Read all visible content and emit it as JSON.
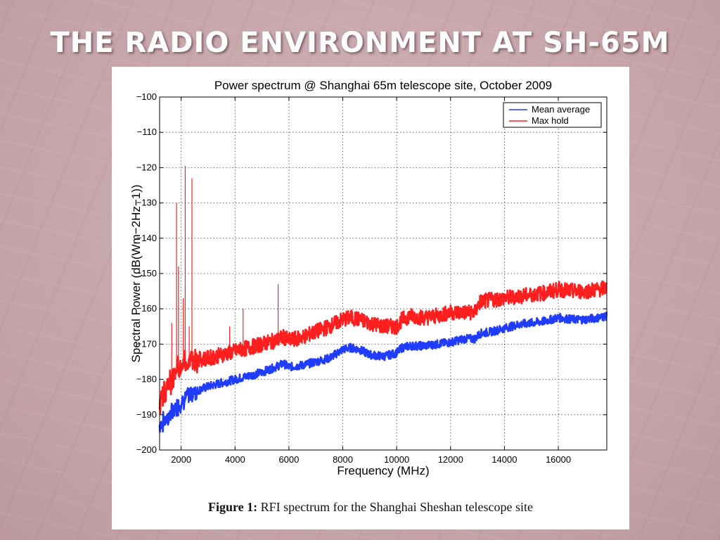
{
  "slide": {
    "title": "THE RADIO ENVIRONMENT AT SH-65M",
    "background_color": "#c8a9ad"
  },
  "figure": {
    "caption_label": "Figure 1:",
    "caption_text": "RFI spectrum for the Shanghai Sheshan telescope site"
  },
  "chart_data": {
    "type": "line",
    "title": "Power spectrum @ Shanghai 65m telescope site, October 2009",
    "xlabel": "Frequency (MHz)",
    "ylabel": "Spectral Power (dB(Wm−2Hz−1))",
    "xlim": [
      1200,
      17800
    ],
    "ylim": [
      -200,
      -100
    ],
    "xticks": [
      2000,
      4000,
      6000,
      8000,
      10000,
      12000,
      14000,
      16000
    ],
    "yticks": [
      -100,
      -110,
      -120,
      -130,
      -140,
      -150,
      -160,
      -170,
      -180,
      -190,
      -200
    ],
    "grid": true,
    "legend_position": "top-right",
    "series": [
      {
        "name": "Mean average",
        "color": "#1f3cff",
        "x": [
          1200,
          1500,
          1800,
          2000,
          2200,
          2500,
          3000,
          3500,
          4000,
          4500,
          5000,
          5500,
          5800,
          6000,
          6500,
          7000,
          7500,
          8000,
          8300,
          8600,
          9000,
          9500,
          10000,
          10200,
          10500,
          11000,
          11500,
          12000,
          12500,
          12900,
          13100,
          13500,
          14000,
          14500,
          15000,
          15500,
          16000,
          16500,
          17000,
          17500,
          17800
        ],
        "y": [
          -193,
          -191,
          -188,
          -186.5,
          -185,
          -183.5,
          -182,
          -181,
          -180,
          -179,
          -178,
          -176.5,
          -175.5,
          -176.5,
          -176,
          -175,
          -174,
          -171.5,
          -171,
          -171.5,
          -173,
          -173.5,
          -172.5,
          -171,
          -170.5,
          -170.5,
          -170,
          -169.5,
          -168.5,
          -168.5,
          -167,
          -166.5,
          -165.5,
          -164.5,
          -164,
          -163.5,
          -162.5,
          -163,
          -163,
          -162.5,
          -162
        ]
      },
      {
        "name": "Max hold",
        "color": "#ff1f1f",
        "x": [
          1200,
          1500,
          1800,
          2000,
          2200,
          2500,
          3000,
          3500,
          4000,
          4500,
          5000,
          5500,
          5800,
          6000,
          6500,
          7000,
          7500,
          8000,
          8300,
          8600,
          9000,
          9500,
          10000,
          10200,
          10500,
          11000,
          11500,
          12000,
          12500,
          12900,
          13100,
          13500,
          14000,
          14500,
          15000,
          15500,
          16000,
          16500,
          17000,
          17500,
          17800
        ],
        "y": [
          -187,
          -182,
          -178,
          -176,
          -175,
          -174.5,
          -174,
          -173,
          -172,
          -171,
          -170,
          -169,
          -168,
          -169,
          -168,
          -166.5,
          -165,
          -163,
          -162.5,
          -163,
          -164,
          -165,
          -165,
          -163,
          -162,
          -162.5,
          -162,
          -161,
          -161,
          -161,
          -158,
          -157.5,
          -157,
          -156.5,
          -156,
          -155.5,
          -154.5,
          -155,
          -155,
          -154.5,
          -154
        ]
      }
    ],
    "annotations": [
      {
        "x": 1650,
        "y": -164,
        "series": "Max hold"
      },
      {
        "x": 1830,
        "y": -130,
        "series": "Max hold"
      },
      {
        "x": 1900,
        "y": -148,
        "series": "Max hold"
      },
      {
        "x": 2080,
        "y": -157,
        "series": "Max hold"
      },
      {
        "x": 2150,
        "y": -119.5,
        "series": "Max hold"
      },
      {
        "x": 2300,
        "y": -165,
        "series": "Max hold"
      },
      {
        "x": 2400,
        "y": -123,
        "series": "Max hold"
      },
      {
        "x": 3800,
        "y": -165,
        "series": "Max hold"
      },
      {
        "x": 4300,
        "y": -160,
        "series": "Max hold"
      },
      {
        "x": 5600,
        "y": -153,
        "series": "Max hold"
      }
    ]
  }
}
